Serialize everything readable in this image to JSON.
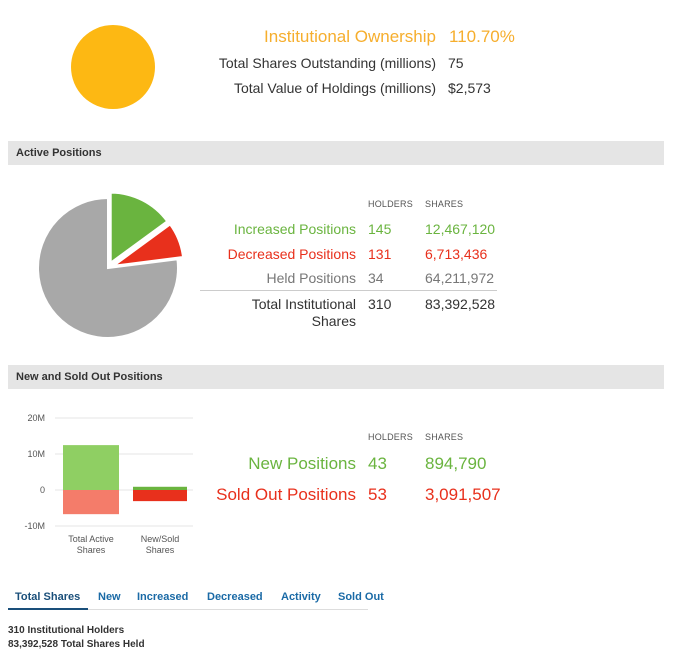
{
  "summary": {
    "ownership_label": "Institutional Ownership",
    "ownership_value": "110.70%",
    "shares_outstanding_label": "Total Shares Outstanding (millions)",
    "shares_outstanding_value": "75",
    "holdings_value_label": "Total Value of Holdings (millions)",
    "holdings_value_value": "$2,573",
    "circle_color": "#FDB813"
  },
  "active_positions": {
    "section_title": "Active Positions",
    "col_holders": "HOLDERS",
    "col_shares": "SHARES",
    "rows": [
      {
        "label": "Increased Positions",
        "holders": "145",
        "shares": "12,467,120",
        "color": "#6ab43f"
      },
      {
        "label": "Decreased Positions",
        "holders": "131",
        "shares": "6,713,436",
        "color": "#e8301c"
      },
      {
        "label": "Held Positions",
        "holders": "34",
        "shares": "64,211,972",
        "color": "#a8a8a8"
      }
    ],
    "total": {
      "label_line1": "Total Institutional",
      "label_line2": "Shares",
      "holders": "310",
      "shares": "83,392,528"
    }
  },
  "new_sold": {
    "section_title": "New and Sold Out Positions",
    "col_holders": "HOLDERS",
    "col_shares": "SHARES",
    "rows": [
      {
        "label": "New Positions",
        "holders": "43",
        "shares": "894,790",
        "color": "#6ab43f"
      },
      {
        "label": "Sold Out Positions",
        "holders": "53",
        "shares": "3,091,507",
        "color": "#e8301c"
      }
    ]
  },
  "chart_data": [
    {
      "type": "pie",
      "categories": [
        "Increased Positions",
        "Decreased Positions",
        "Held Positions"
      ],
      "values": [
        12467120,
        6713436,
        64211972
      ],
      "colors": [
        "#6ab43f",
        "#e8301c",
        "#a8a8a8"
      ],
      "exploded": [
        "Increased Positions",
        "Decreased Positions"
      ]
    },
    {
      "type": "bar",
      "categories": [
        "Total Active Shares",
        "New/Sold Shares"
      ],
      "category_lines": [
        [
          "Total Active",
          "Shares"
        ],
        [
          "New/Sold",
          "Shares"
        ]
      ],
      "series": [
        {
          "values": [
            12467120,
            894790
          ],
          "color": "#8fcf63"
        },
        {
          "values": [
            -6713436,
            -3091507
          ],
          "color": "#f47c6a"
        }
      ],
      "yticks": [
        "20M",
        "10M",
        "0",
        "-10M"
      ],
      "ytick_values": [
        20000000,
        10000000,
        0,
        -10000000
      ],
      "ylim": [
        -10000000,
        20000000
      ],
      "grid": true
    }
  ],
  "tabs": [
    {
      "label": "Total Shares",
      "active": true
    },
    {
      "label": "New",
      "active": false
    },
    {
      "label": "Increased",
      "active": false
    },
    {
      "label": "Decreased",
      "active": false
    },
    {
      "label": "Activity",
      "active": false
    },
    {
      "label": "Sold Out",
      "active": false
    }
  ],
  "footer": {
    "holders_text": "310 Institutional Holders",
    "shares_text": "83,392,528 Total Shares Held"
  }
}
